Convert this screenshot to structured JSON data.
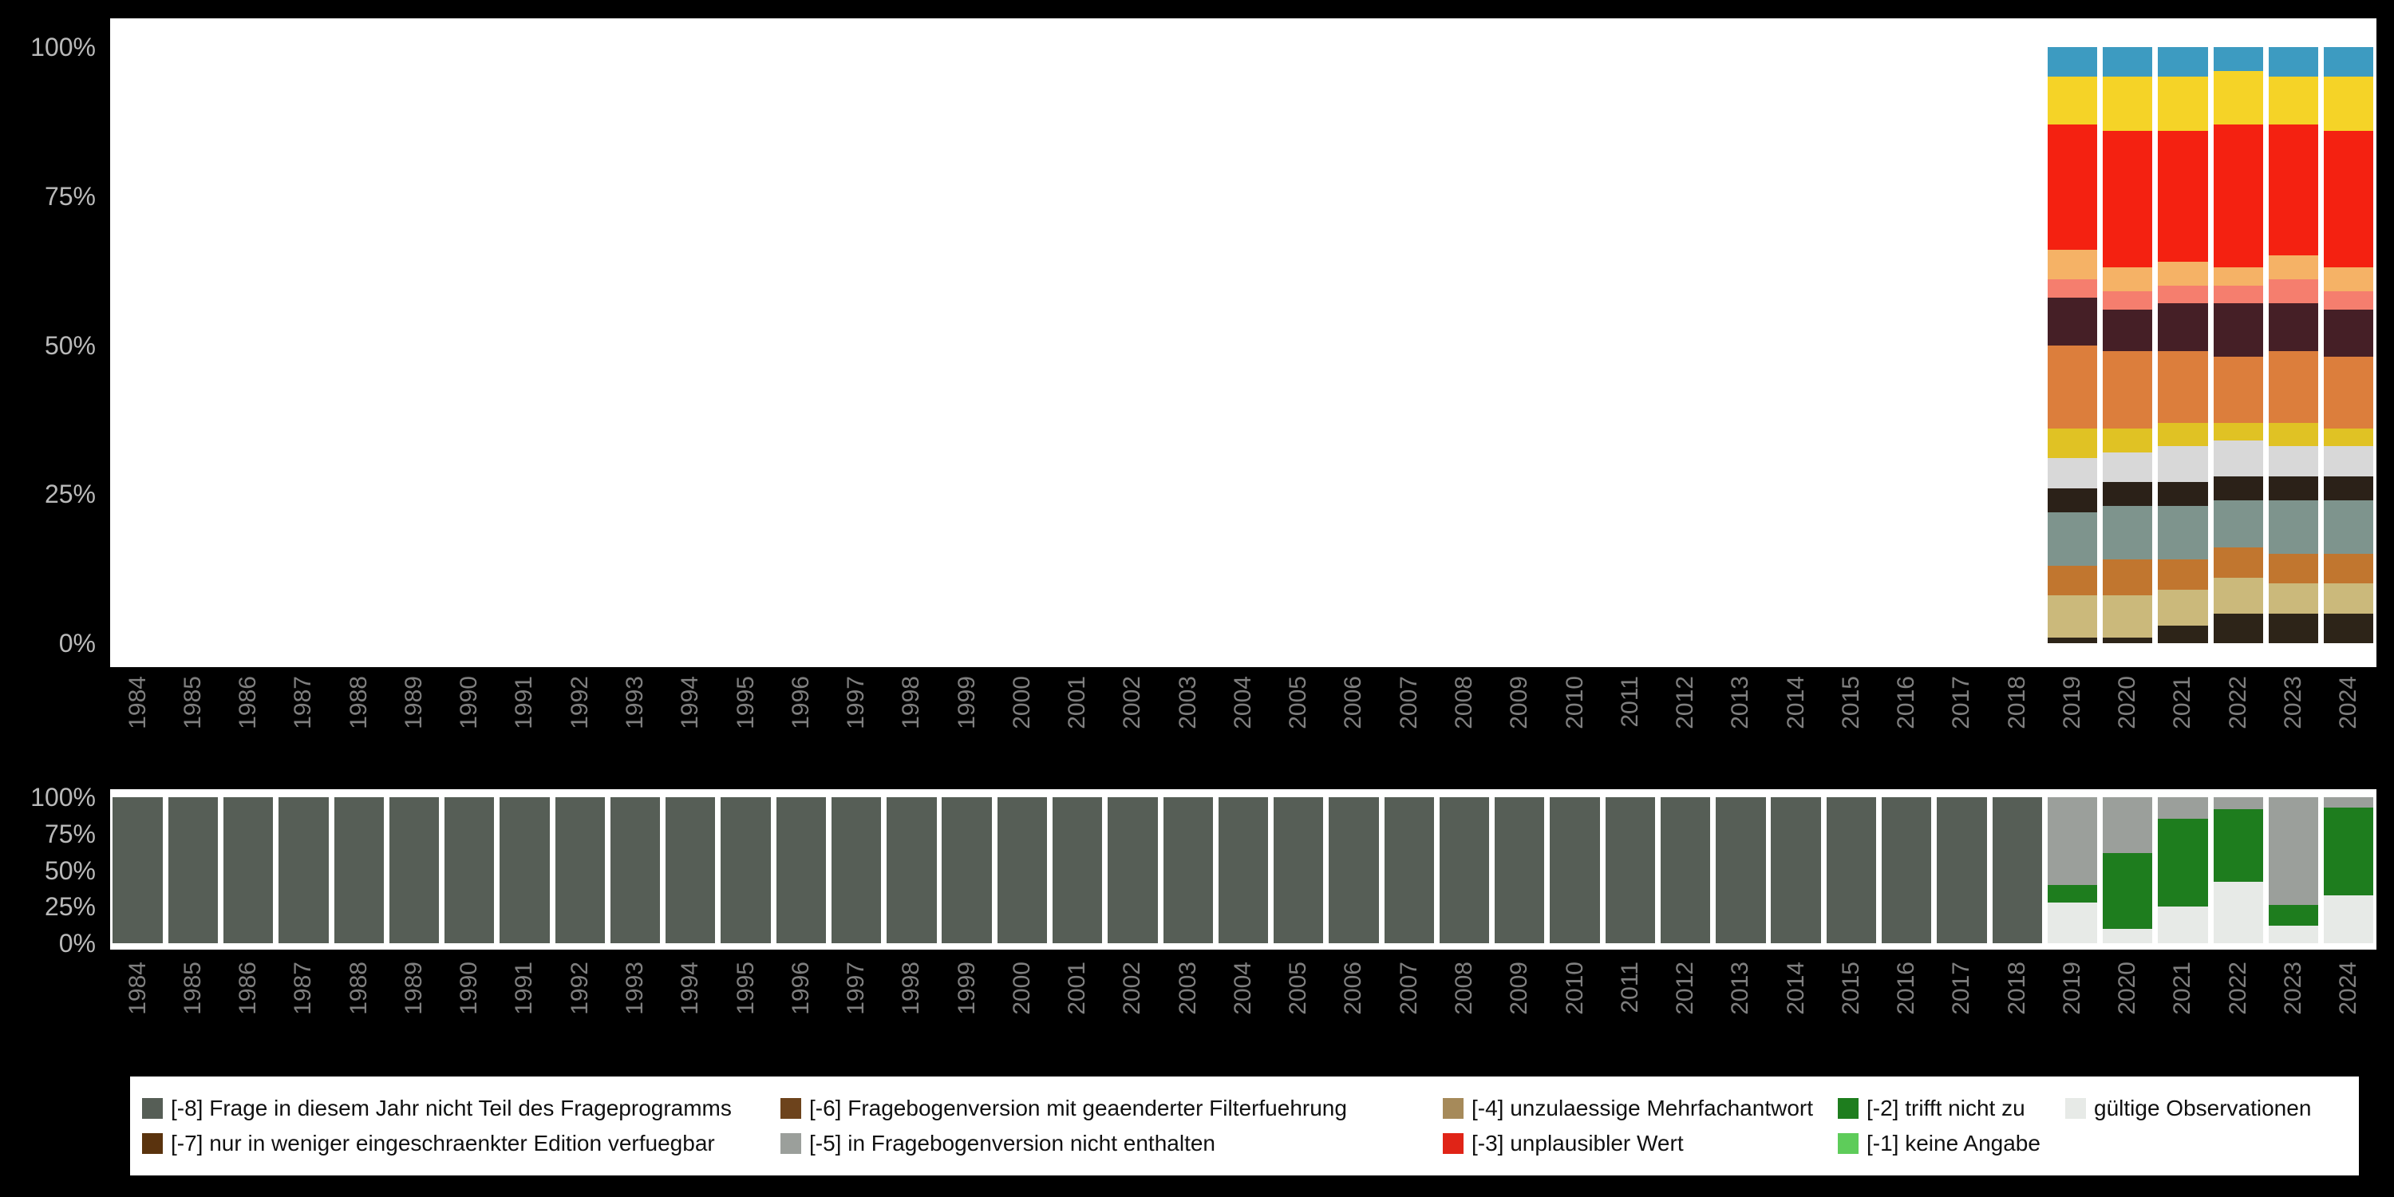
{
  "page": {
    "background": "#000000",
    "panel_background": "#ffffff"
  },
  "axes": {
    "y_ticks": [
      "100%",
      "75%",
      "50%",
      "25%",
      "0%"
    ],
    "x_tick_rotation": 90,
    "years": [
      "1984",
      "1985",
      "1986",
      "1987",
      "1988",
      "1989",
      "1990",
      "1991",
      "1992",
      "1993",
      "1994",
      "1995",
      "1996",
      "1997",
      "1998",
      "1999",
      "2000",
      "2001",
      "2002",
      "2003",
      "2004",
      "2005",
      "2006",
      "2007",
      "2008",
      "2009",
      "2010",
      "2011",
      "2012",
      "2013",
      "2014",
      "2015",
      "2016",
      "2017",
      "2018",
      "2019",
      "2020",
      "2021",
      "2022",
      "2023",
      "2024"
    ]
  },
  "chart_data": [
    {
      "name": "value-distribution-top-panel",
      "type": "bar",
      "stacked": true,
      "title": "",
      "xlabel": "",
      "ylabel": "",
      "ylim": [
        0,
        100
      ],
      "grid": false,
      "series_order": "top-to-bottom",
      "categories": [
        "2019",
        "2020",
        "2021",
        "2022",
        "2023",
        "2024"
      ],
      "series": [
        {
          "name": "segment-blue",
          "color": "#3d9bc1",
          "values": [
            5,
            5,
            5,
            4,
            5,
            5
          ]
        },
        {
          "name": "segment-yellow",
          "color": "#f5d327",
          "values": [
            8,
            9,
            9,
            9,
            8,
            9
          ]
        },
        {
          "name": "segment-red",
          "color": "#f42111",
          "values": [
            21,
            23,
            22,
            24,
            22,
            23
          ]
        },
        {
          "name": "segment-peach",
          "color": "#f5b266",
          "values": [
            5,
            4,
            4,
            3,
            4,
            4
          ]
        },
        {
          "name": "segment-salmon",
          "color": "#f57e6e",
          "values": [
            3,
            3,
            3,
            3,
            4,
            3
          ]
        },
        {
          "name": "segment-dark-maroon",
          "color": "#451f26",
          "values": [
            8,
            7,
            8,
            9,
            8,
            8
          ]
        },
        {
          "name": "segment-orange",
          "color": "#dc7e3c",
          "values": [
            14,
            13,
            12,
            11,
            12,
            12
          ]
        },
        {
          "name": "segment-gold",
          "color": "#e0c224",
          "values": [
            5,
            4,
            4,
            3,
            4,
            3
          ]
        },
        {
          "name": "segment-light-gray",
          "color": "#d8d8d8",
          "values": [
            5,
            5,
            6,
            6,
            5,
            5
          ]
        },
        {
          "name": "segment-black",
          "color": "#2b2118",
          "values": [
            4,
            4,
            4,
            4,
            4,
            4
          ]
        },
        {
          "name": "segment-teal-gray",
          "color": "#7e948d",
          "values": [
            9,
            9,
            9,
            8,
            9,
            9
          ]
        },
        {
          "name": "segment-brown-orange",
          "color": "#c1762f",
          "values": [
            5,
            6,
            5,
            5,
            5,
            5
          ]
        },
        {
          "name": "segment-khaki",
          "color": "#cbb97b",
          "values": [
            7,
            7,
            6,
            6,
            5,
            5
          ]
        },
        {
          "name": "segment-dark-bottom",
          "color": "#2d2418",
          "values": [
            1,
            1,
            3,
            5,
            5,
            5
          ]
        }
      ]
    },
    {
      "name": "missing-codes-bottom-panel",
      "type": "bar",
      "stacked": true,
      "title": "",
      "xlabel": "",
      "ylabel": "",
      "ylim": [
        0,
        100
      ],
      "grid": false,
      "series_order": "top-to-bottom",
      "categories": [
        "1984",
        "1985",
        "1986",
        "1987",
        "1988",
        "1989",
        "1990",
        "1991",
        "1992",
        "1993",
        "1994",
        "1995",
        "1996",
        "1997",
        "1998",
        "1999",
        "2000",
        "2001",
        "2002",
        "2003",
        "2004",
        "2005",
        "2006",
        "2007",
        "2008",
        "2009",
        "2010",
        "2011",
        "2012",
        "2013",
        "2014",
        "2015",
        "2016",
        "2017",
        "2018",
        "2019",
        "2020",
        "2021",
        "2022",
        "2023",
        "2024"
      ],
      "series": [
        {
          "name": "[-8] Frage in diesem Jahr nicht Teil des Frageprogramms",
          "color": "#565e56",
          "values": [
            100,
            100,
            100,
            100,
            100,
            100,
            100,
            100,
            100,
            100,
            100,
            100,
            100,
            100,
            100,
            100,
            100,
            100,
            100,
            100,
            100,
            100,
            100,
            100,
            100,
            100,
            100,
            100,
            100,
            100,
            100,
            100,
            100,
            100,
            100,
            0,
            0,
            0,
            0,
            0,
            0
          ]
        },
        {
          "name": "[-5] in Fragebogenversion nicht enthalten",
          "color": "#9b9f9b",
          "values": [
            0,
            0,
            0,
            0,
            0,
            0,
            0,
            0,
            0,
            0,
            0,
            0,
            0,
            0,
            0,
            0,
            0,
            0,
            0,
            0,
            0,
            0,
            0,
            0,
            0,
            0,
            0,
            0,
            0,
            0,
            0,
            0,
            0,
            0,
            0,
            60,
            38,
            15,
            8,
            74,
            7
          ]
        },
        {
          "name": "[-2] trifft nicht zu",
          "color": "#1e7d1e",
          "values": [
            0,
            0,
            0,
            0,
            0,
            0,
            0,
            0,
            0,
            0,
            0,
            0,
            0,
            0,
            0,
            0,
            0,
            0,
            0,
            0,
            0,
            0,
            0,
            0,
            0,
            0,
            0,
            0,
            0,
            0,
            0,
            0,
            0,
            0,
            0,
            12,
            52,
            60,
            50,
            14,
            60
          ]
        },
        {
          "name": "gültige Observationen",
          "color": "#e7eae7",
          "values": [
            0,
            0,
            0,
            0,
            0,
            0,
            0,
            0,
            0,
            0,
            0,
            0,
            0,
            0,
            0,
            0,
            0,
            0,
            0,
            0,
            0,
            0,
            0,
            0,
            0,
            0,
            0,
            0,
            0,
            0,
            0,
            0,
            0,
            0,
            0,
            28,
            10,
            25,
            42,
            12,
            33
          ]
        }
      ]
    }
  ],
  "legend": {
    "columns": [
      [
        {
          "label": "[-8] Frage in diesem Jahr nicht Teil des Frageprogramms",
          "color": "#565e56"
        },
        {
          "label": "[-7] nur in weniger eingeschraenkter Edition verfuegbar",
          "color": "#5a330e"
        }
      ],
      [
        {
          "label": "[-6] Fragebogenversion mit geaenderter Filterfuehrung",
          "color": "#6d431c"
        },
        {
          "label": "[-5] in Fragebogenversion nicht enthalten",
          "color": "#9b9f9b"
        }
      ],
      [
        {
          "label": "[-4] unzulaessige Mehrfachantwort",
          "color": "#a68a5a"
        },
        {
          "label": "[-3] unplausibler Wert",
          "color": "#e02417"
        }
      ],
      [
        {
          "label": "[-2] trifft nicht zu",
          "color": "#1e7d1e"
        },
        {
          "label": "[-1] keine Angabe",
          "color": "#5ecc5a"
        }
      ],
      [
        {
          "label": "gültige Observationen",
          "color": "#e7eae7"
        }
      ]
    ]
  }
}
